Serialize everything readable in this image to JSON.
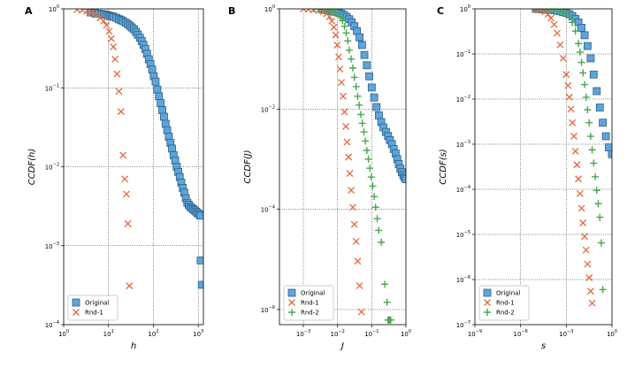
{
  "chart_data": [
    {
      "panel": "A",
      "type": "scatter",
      "xlabel": "h",
      "ylabel": "CCDF(h)",
      "xscale": "log",
      "yscale": "log",
      "xlim": [
        1,
        1300
      ],
      "ylim": [
        0.0001,
        1
      ],
      "grid": true,
      "legend_placement": "lower-left",
      "xticks": [
        {
          "value": 1,
          "label_base": "10",
          "label_exp": "0"
        },
        {
          "value": 10,
          "label_base": "10",
          "label_exp": "1"
        },
        {
          "value": 100,
          "label_base": "10",
          "label_exp": "2"
        },
        {
          "value": 1000,
          "label_base": "10",
          "label_exp": "3"
        }
      ],
      "yticks": [
        {
          "value": 0.0001,
          "label_base": "10",
          "label_exp": "−4"
        },
        {
          "value": 0.001,
          "label_base": "10",
          "label_exp": "−3"
        },
        {
          "value": 0.01,
          "label_base": "10",
          "label_exp": "−2"
        },
        {
          "value": 0.1,
          "label_base": "10",
          "label_exp": "−1"
        },
        {
          "value": 1,
          "label_base": "10",
          "label_exp": "0"
        }
      ],
      "series": [
        {
          "name": "Original",
          "marker": "square",
          "color": "#5DA5DA",
          "x": [
            4,
            5,
            6,
            7,
            8,
            9,
            10,
            11,
            12,
            13,
            15,
            17,
            19,
            21,
            24,
            27,
            30,
            33,
            37,
            41,
            45,
            50,
            55,
            60,
            66,
            72,
            79,
            86,
            94,
            102,
            112,
            122,
            133,
            145,
            158,
            172,
            187,
            203,
            221,
            240,
            260,
            282,
            306,
            331,
            358,
            387,
            418,
            452,
            488,
            527,
            569,
            614,
            662,
            714,
            770,
            830,
            894,
            963,
            1040,
            1120,
            1130,
            1200
          ],
          "y": [
            0.9,
            0.88,
            0.87,
            0.86,
            0.85,
            0.84,
            0.82,
            0.81,
            0.8,
            0.79,
            0.77,
            0.74,
            0.72,
            0.7,
            0.67,
            0.64,
            0.61,
            0.58,
            0.55,
            0.51,
            0.47,
            0.43,
            0.39,
            0.35,
            0.31,
            0.27,
            0.23,
            0.2,
            0.17,
            0.14,
            0.12,
            0.095,
            0.078,
            0.064,
            0.052,
            0.043,
            0.035,
            0.029,
            0.024,
            0.02,
            0.017,
            0.014,
            0.012,
            0.01,
            0.0086,
            0.0074,
            0.0063,
            0.0054,
            0.0047,
            0.004,
            0.0035,
            0.0033,
            0.0031,
            0.003,
            0.0029,
            0.0028,
            0.0027,
            0.0026,
            0.0025,
            0.0024,
            0.00065,
            0.00032
          ]
        },
        {
          "name": "Rnd-1",
          "marker": "x",
          "color": "#E5673F",
          "x": [
            2,
            2.6,
            3.3,
            4.2,
            5.3,
            6.5,
            7.8,
            9,
            10.3,
            11.5,
            12.8,
            14,
            15.5,
            17,
            19,
            21,
            23,
            25,
            27,
            29
          ],
          "y": [
            0.98,
            0.96,
            0.93,
            0.89,
            0.84,
            0.77,
            0.7,
            0.62,
            0.52,
            0.42,
            0.33,
            0.23,
            0.15,
            0.09,
            0.05,
            0.014,
            0.007,
            0.0045,
            0.0019,
            0.00031
          ]
        }
      ]
    },
    {
      "panel": "B",
      "type": "scatter",
      "xlabel": "J",
      "ylabel": "CCDF(J)",
      "xscale": "log",
      "yscale": "log",
      "xlim": [
        0.0002,
        1
      ],
      "ylim": [
        5e-07,
        1
      ],
      "grid": true,
      "legend_placement": "lower-left",
      "xticks": [
        {
          "value": 0.001,
          "label_base": "10",
          "label_exp": "−3"
        },
        {
          "value": 0.01,
          "label_base": "10",
          "label_exp": "−2"
        },
        {
          "value": 0.1,
          "label_base": "10",
          "label_exp": "−1"
        },
        {
          "value": 1,
          "label_base": "10",
          "label_exp": "0"
        }
      ],
      "yticks": [
        {
          "value": 1e-06,
          "label_base": "10",
          "label_exp": "−6"
        },
        {
          "value": 0.0001,
          "label_base": "10",
          "label_exp": "−4"
        },
        {
          "value": 0.01,
          "label_base": "10",
          "label_exp": "−2"
        },
        {
          "value": 1,
          "label_base": "10",
          "label_exp": "0"
        }
      ],
      "series": [
        {
          "name": "Original",
          "marker": "square",
          "color": "#5DA5DA",
          "x": [
            0.0036,
            0.0043,
            0.0052,
            0.0062,
            0.0075,
            0.009,
            0.0108,
            0.013,
            0.0155,
            0.0185,
            0.022,
            0.026,
            0.031,
            0.037,
            0.044,
            0.052,
            0.061,
            0.072,
            0.085,
            0.1,
            0.118,
            0.138,
            0.162,
            0.19,
            0.22,
            0.26,
            0.3,
            0.34,
            0.39,
            0.44,
            0.5,
            0.56,
            0.62,
            0.69,
            0.76,
            0.84,
            0.92,
            1.0
          ],
          "y": [
            0.98,
            0.96,
            0.94,
            0.92,
            0.9,
            0.87,
            0.84,
            0.8,
            0.75,
            0.69,
            0.62,
            0.54,
            0.45,
            0.36,
            0.27,
            0.19,
            0.12,
            0.075,
            0.045,
            0.027,
            0.017,
            0.011,
            0.0075,
            0.0055,
            0.0043,
            0.0035,
            0.0029,
            0.0024,
            0.002,
            0.0016,
            0.0013,
            0.001,
            0.0008,
            0.00065,
            0.00055,
            0.00048,
            0.00043,
            0.0004
          ]
        },
        {
          "name": "Rnd-1",
          "marker": "x",
          "color": "#E5673F",
          "x": [
            0.001,
            0.0014,
            0.002,
            0.0028,
            0.0038,
            0.0048,
            0.0058,
            0.0068,
            0.0078,
            0.0088,
            0.0098,
            0.0108,
            0.0118,
            0.013,
            0.0145,
            0.016,
            0.0175,
            0.019,
            0.021,
            0.023,
            0.025,
            0.028,
            0.031,
            0.035,
            0.039,
            0.044,
            0.05
          ],
          "y": [
            1,
            0.98,
            0.96,
            0.93,
            0.88,
            0.8,
            0.7,
            0.57,
            0.43,
            0.3,
            0.19,
            0.11,
            0.063,
            0.034,
            0.018,
            0.0088,
            0.0045,
            0.0022,
            0.0011,
            0.00052,
            0.00024,
            0.00011,
            5e-05,
            2.3e-05,
            9.2e-06,
            3e-06,
            9e-07
          ]
        },
        {
          "name": "Rnd-2",
          "marker": "plus",
          "color": "#45A84E",
          "x": [
            0.002,
            0.0028,
            0.004,
            0.0055,
            0.007,
            0.0085,
            0.01,
            0.012,
            0.014,
            0.016,
            0.018,
            0.02,
            0.022,
            0.025,
            0.028,
            0.031,
            0.035,
            0.039,
            0.043,
            0.048,
            0.053,
            0.059,
            0.065,
            0.072,
            0.08,
            0.088,
            0.097,
            0.107,
            0.118,
            0.13,
            0.145,
            0.16,
            0.19,
            0.24,
            0.28,
            0.3,
            0.32,
            0.34,
            0.36
          ],
          "y": [
            1,
            0.99,
            0.98,
            0.96,
            0.93,
            0.88,
            0.8,
            0.7,
            0.58,
            0.45,
            0.33,
            0.23,
            0.15,
            0.1,
            0.066,
            0.043,
            0.028,
            0.018,
            0.012,
            0.0078,
            0.0052,
            0.0035,
            0.0023,
            0.0015,
            0.001,
            0.00066,
            0.00044,
            0.00029,
            0.00018,
            0.00011,
            6.5e-05,
            3.8e-05,
            2.2e-05,
            3.2e-06,
            1.4e-06,
            6.2e-07,
            6.2e-07,
            6.2e-07,
            6.2e-07
          ]
        }
      ]
    },
    {
      "panel": "C",
      "type": "scatter",
      "xlabel": "s",
      "ylabel": "CCDF(s)",
      "xscale": "log",
      "yscale": "log",
      "xlim": [
        1e-09,
        1
      ],
      "ylim": [
        1e-07,
        1
      ],
      "grid": true,
      "legend_placement": "lower-left",
      "xticks": [
        {
          "value": 1e-09,
          "label_base": "10",
          "label_exp": "−9"
        },
        {
          "value": 1e-06,
          "label_base": "10",
          "label_exp": "−6"
        },
        {
          "value": 0.001,
          "label_base": "10",
          "label_exp": "−3"
        },
        {
          "value": 1,
          "label_base": "10",
          "label_exp": "0"
        }
      ],
      "yticks": [
        {
          "value": 1e-07,
          "label_base": "10",
          "label_exp": "−7"
        },
        {
          "value": 1e-06,
          "label_base": "10",
          "label_exp": "−6"
        },
        {
          "value": 1e-05,
          "label_base": "10",
          "label_exp": "−5"
        },
        {
          "value": 0.0001,
          "label_base": "10",
          "label_exp": "−4"
        },
        {
          "value": 0.001,
          "label_base": "10",
          "label_exp": "−3"
        },
        {
          "value": 0.01,
          "label_base": "10",
          "label_exp": "−2"
        },
        {
          "value": 0.1,
          "label_base": "10",
          "label_exp": "−1"
        },
        {
          "value": 1,
          "label_base": "10",
          "label_exp": "0"
        }
      ],
      "series": [
        {
          "name": "Original",
          "marker": "square",
          "color": "#5DA5DA",
          "x": [
            1e-05,
            1.6e-05,
            2.5e-05,
            4e-05,
            6.3e-05,
            0.0001,
            0.00016,
            0.00025,
            0.0004,
            0.00063,
            0.001,
            0.0016,
            0.0025,
            0.004,
            0.0063,
            0.01,
            0.016,
            0.025,
            0.04,
            0.063,
            0.1,
            0.16,
            0.25,
            0.4,
            0.63,
            1.0
          ],
          "y": [
            1,
            0.99,
            0.98,
            0.97,
            0.96,
            0.95,
            0.93,
            0.91,
            0.88,
            0.85,
            0.81,
            0.76,
            0.69,
            0.6,
            0.5,
            0.38,
            0.26,
            0.15,
            0.08,
            0.035,
            0.015,
            0.0065,
            0.003,
            0.0015,
            0.00085,
            0.0006
          ]
        },
        {
          "name": "Rnd-1",
          "marker": "x",
          "color": "#E5673F",
          "x": [
            1e-05,
            1.6e-05,
            2.5e-05,
            4e-05,
            6.3e-05,
            0.0001,
            0.00016,
            0.00025,
            0.0004,
            0.00063,
            0.001,
            0.0013,
            0.0016,
            0.002,
            0.0025,
            0.0032,
            0.004,
            0.005,
            0.0063,
            0.008,
            0.01,
            0.0125,
            0.016,
            0.02,
            0.025,
            0.032,
            0.04,
            0.05
          ],
          "y": [
            1,
            0.97,
            0.93,
            0.86,
            0.76,
            0.62,
            0.45,
            0.29,
            0.16,
            0.08,
            0.035,
            0.02,
            0.011,
            0.006,
            0.003,
            0.0015,
            0.0007,
            0.00035,
            0.00017,
            8e-05,
            3.8e-05,
            1.8e-05,
            9e-06,
            4.5e-06,
            2.2e-06,
            1.1e-06,
            5.5e-07,
            3e-07
          ]
        },
        {
          "name": "Rnd-2",
          "marker": "plus",
          "color": "#45A84E",
          "x": [
            1e-05,
            1.6e-05,
            2.5e-05,
            4e-05,
            6.3e-05,
            0.0001,
            0.00016,
            0.00025,
            0.0004,
            0.00063,
            0.001,
            0.0016,
            0.0025,
            0.004,
            0.0063,
            0.008,
            0.01,
            0.0125,
            0.016,
            0.02,
            0.025,
            0.032,
            0.04,
            0.05,
            0.063,
            0.08,
            0.1,
            0.125,
            0.16,
            0.2,
            0.25
          ],
          "y": [
            1,
            1,
            1,
            0.99,
            0.99,
            0.98,
            0.97,
            0.95,
            0.92,
            0.87,
            0.79,
            0.66,
            0.5,
            0.32,
            0.17,
            0.11,
            0.065,
            0.038,
            0.021,
            0.011,
            0.0058,
            0.003,
            0.0015,
            0.00075,
            0.00038,
            0.00019,
            9.5e-05,
            4.8e-05,
            2.4e-05,
            6.5e-06,
            6e-07
          ]
        }
      ]
    }
  ]
}
